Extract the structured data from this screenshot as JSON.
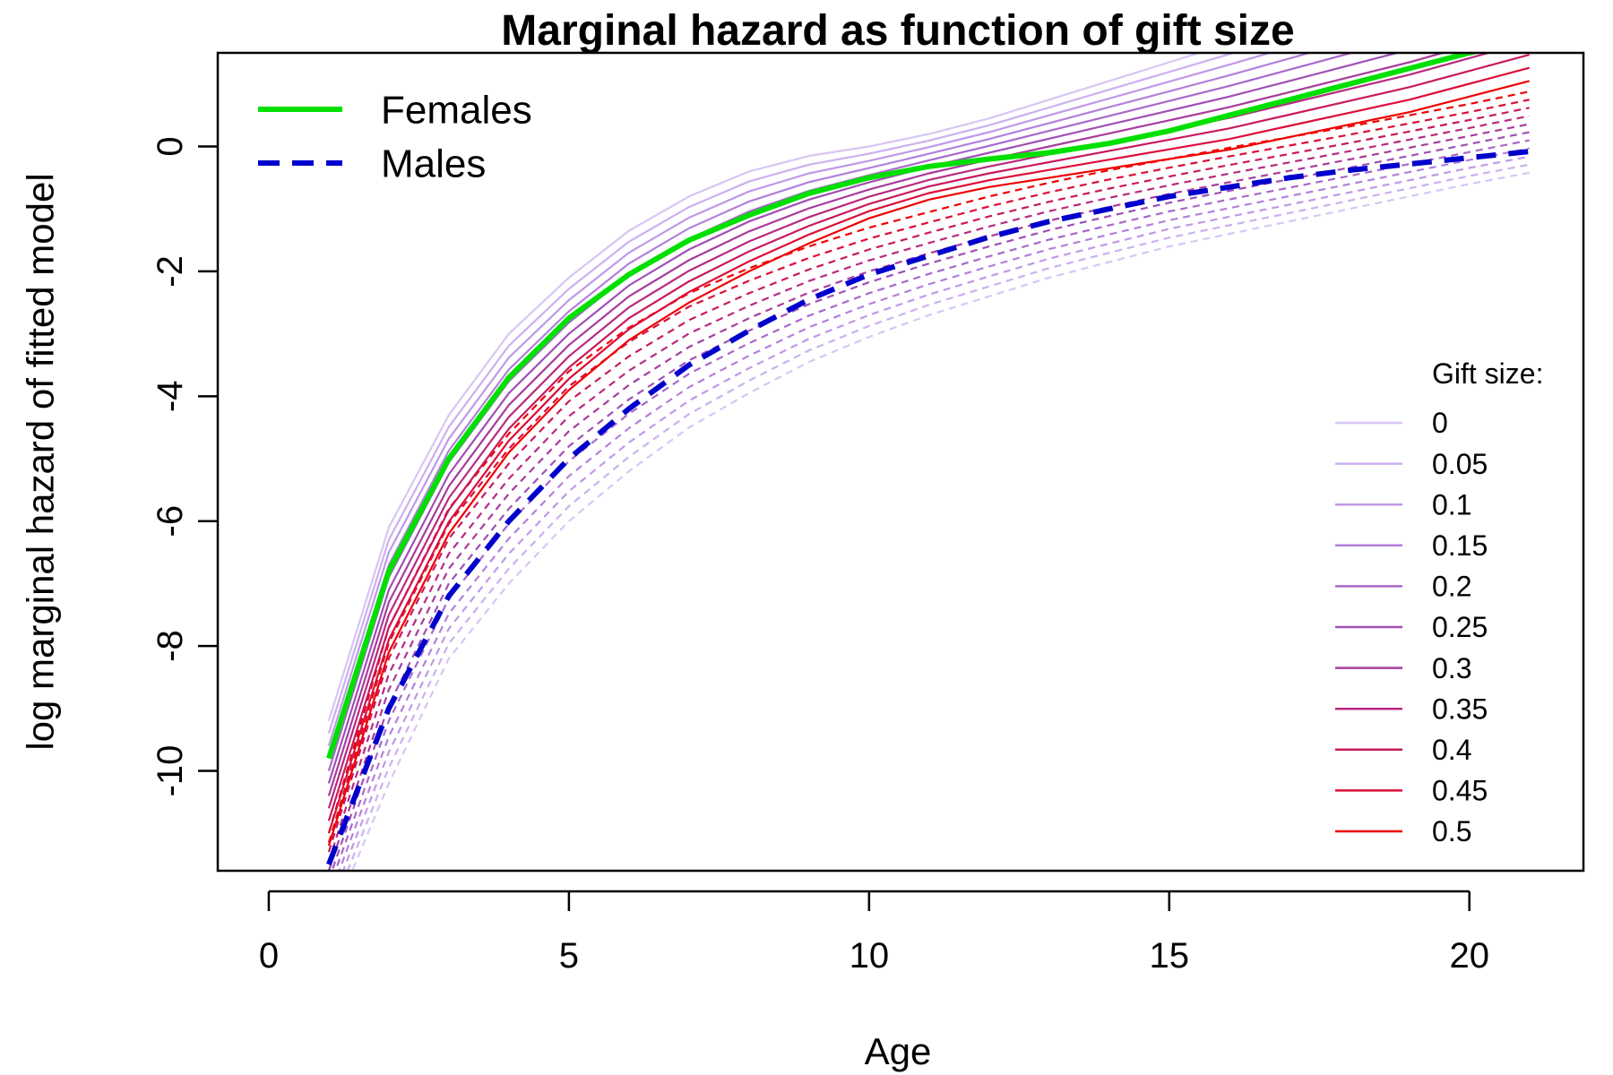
{
  "chart_data": {
    "type": "line",
    "title": "Marginal hazard as function of gift size",
    "xlabel": "Age",
    "ylabel": "log marginal hazard of fitted model",
    "xlim": [
      -0.85,
      21.9
    ],
    "ylim": [
      -11.6,
      1.5
    ],
    "xticks": [
      0,
      5,
      10,
      15,
      20
    ],
    "yticks": [
      -10,
      -8,
      -6,
      -4,
      -2,
      0
    ],
    "x": [
      1,
      2,
      3,
      4,
      5,
      6,
      7,
      8,
      9,
      10,
      11,
      12,
      13,
      14,
      15,
      16,
      17,
      18,
      19,
      20,
      21
    ],
    "highlight_series": [
      {
        "name": "Females",
        "color": "#00e000",
        "dash": "solid",
        "values": [
          -9.8,
          -6.8,
          -5.0,
          -3.7,
          -2.75,
          -2.05,
          -1.5,
          -1.1,
          -0.75,
          -0.5,
          -0.32,
          -0.2,
          -0.1,
          0.05,
          0.25,
          0.5,
          0.75,
          1.0,
          1.25,
          1.5,
          1.7
        ]
      },
      {
        "name": "Males",
        "color": "#0000cc",
        "dash": "dashed",
        "values": [
          -11.5,
          -9.0,
          -7.2,
          -6.0,
          -5.0,
          -4.2,
          -3.5,
          -2.95,
          -2.45,
          -2.05,
          -1.75,
          -1.45,
          -1.2,
          -1.0,
          -0.8,
          -0.65,
          -0.5,
          -0.38,
          -0.28,
          -0.18,
          -0.08
        ]
      }
    ],
    "gift_legend": {
      "title": "Gift size:",
      "sizes": [
        "0",
        "0.05",
        "0.1",
        "0.15",
        "0.2",
        "0.25",
        "0.3",
        "0.35",
        "0.4",
        "0.45",
        "0.5"
      ],
      "colors": [
        "#d8c6f4",
        "#ccb0f0",
        "#bf99e8",
        "#b380dc",
        "#a868cc",
        "#a050b6",
        "#a83c9c",
        "#b82a80",
        "#c81a5e",
        "#dc0e3a",
        "#f00000"
      ]
    },
    "gift_curves": {
      "female_top": [
        -9.2,
        -6.1,
        -4.3,
        -3.0,
        -2.1,
        -1.35,
        -0.8,
        -0.4,
        -0.15,
        0.0,
        0.2,
        0.45,
        0.75,
        1.05,
        1.35,
        1.65,
        1.95,
        2.25,
        2.55,
        2.85,
        3.15
      ],
      "female_bottom": [
        -11.2,
        -8.1,
        -6.2,
        -4.9,
        -3.9,
        -3.1,
        -2.5,
        -2.0,
        -1.55,
        -1.15,
        -0.85,
        -0.65,
        -0.5,
        -0.35,
        -0.2,
        -0.05,
        0.15,
        0.35,
        0.55,
        0.8,
        1.05
      ],
      "male_top": [
        -11.0,
        -7.7,
        -5.8,
        -4.6,
        -3.6,
        -2.9,
        -2.35,
        -1.95,
        -1.6,
        -1.3,
        -1.05,
        -0.8,
        -0.58,
        -0.38,
        -0.2,
        -0.02,
        0.15,
        0.32,
        0.5,
        0.68,
        0.88
      ],
      "male_bottom": [
        -12.5,
        -10.2,
        -8.2,
        -7.0,
        -6.0,
        -5.2,
        -4.5,
        -3.95,
        -3.45,
        -3.05,
        -2.7,
        -2.4,
        -2.1,
        -1.85,
        -1.6,
        -1.4,
        -1.2,
        -1.0,
        -0.8,
        -0.6,
        -0.42
      ]
    },
    "legend_position": "top-left",
    "gift_legend_position": "bottom-right",
    "grid": false
  }
}
